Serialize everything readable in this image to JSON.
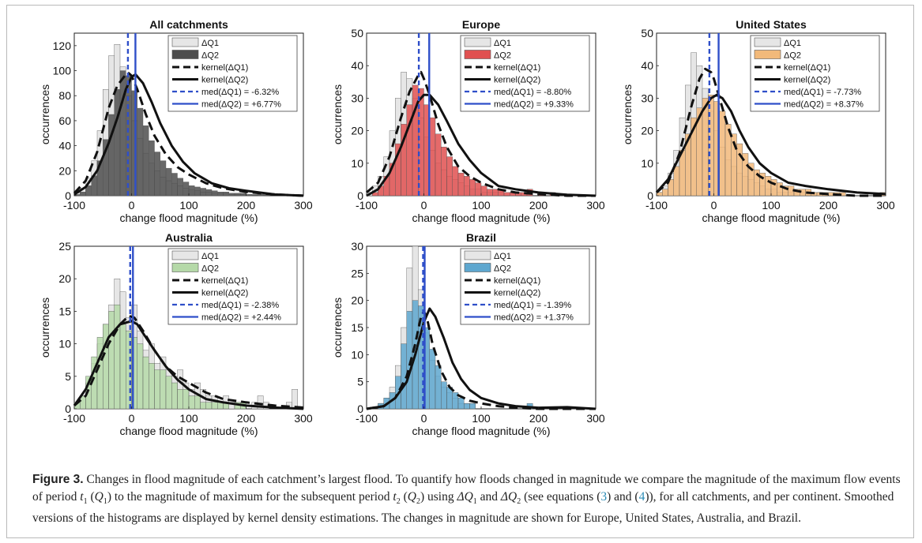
{
  "figure": {
    "label": "Figure 3.",
    "caption_parts": [
      "Changes in flood magnitude of each catchment’s largest flood. To quantify how floods changed in magnitude we compare the magnitude of the maximum flow events of period ",
      "t",
      "1",
      " (",
      "Q",
      "1",
      ") to the magnitude of maximum for the subsequent period ",
      "t",
      "2",
      " (",
      "Q",
      "2",
      ") using ",
      "ΔQ",
      "1",
      " and ",
      "ΔQ",
      "2",
      " (see equations (",
      "3",
      ") and (",
      "4",
      ")), for all catchments, and per continent. Smoothed versions of the histograms are displayed by kernel density estimations. The changes in magnitude are shown for Europe, United States, Australia, and Brazil."
    ]
  },
  "chart_data": [
    {
      "type": "histogram",
      "title": "All catchments",
      "xlabel": "change flood magnitude (%)",
      "ylabel": "occurrences",
      "xlim": [
        -100,
        300
      ],
      "ylim": [
        0,
        130
      ],
      "xticks": [
        -100,
        0,
        100,
        200,
        300
      ],
      "yticks": [
        0,
        20,
        40,
        60,
        80,
        100,
        120
      ],
      "bin_width": 10,
      "fill_colour": "#4d4d4d",
      "legend_location": "top-right",
      "legend": [
        "ΔQ1",
        "ΔQ2",
        "kernel(ΔQ1)",
        "kernel(ΔQ2)",
        "med(ΔQ1) = -6.32%",
        "med(ΔQ2) = +6.77%"
      ],
      "series": [
        {
          "name": "ΔQ1",
          "values": [
            2,
            6,
            14,
            28,
            52,
            85,
            112,
            121,
            103,
            80,
            60,
            46,
            34,
            26,
            20,
            15,
            12,
            10,
            8,
            6,
            5,
            4,
            3,
            3,
            2,
            2,
            2,
            1,
            1,
            1,
            1,
            0,
            1,
            0,
            0,
            0,
            0,
            0,
            0,
            0
          ]
        },
        {
          "name": "ΔQ2",
          "values": [
            1,
            3,
            8,
            16,
            28,
            45,
            65,
            85,
            100,
            96,
            84,
            70,
            56,
            44,
            35,
            28,
            22,
            18,
            14,
            11,
            8,
            7,
            6,
            5,
            4,
            3,
            3,
            2,
            2,
            2,
            1,
            1,
            1,
            1,
            0,
            0,
            1,
            0,
            0,
            1
          ]
        },
        {
          "name": "kernel(ΔQ1)",
          "x": [
            -100,
            -80,
            -60,
            -40,
            -25,
            -10,
            -5,
            0,
            10,
            25,
            40,
            60,
            80,
            100,
            130,
            160,
            200,
            250,
            300
          ],
          "y": [
            2,
            12,
            35,
            70,
            88,
            97,
            98,
            96,
            85,
            65,
            48,
            33,
            23,
            17,
            10,
            6,
            3,
            1,
            0
          ]
        },
        {
          "name": "kernel(ΔQ2)",
          "x": [
            -100,
            -80,
            -60,
            -40,
            -25,
            -10,
            0,
            7,
            20,
            35,
            50,
            70,
            90,
            110,
            140,
            170,
            200,
            250,
            300
          ],
          "y": [
            1,
            7,
            20,
            42,
            62,
            85,
            95,
            97,
            90,
            75,
            58,
            40,
            27,
            18,
            10,
            6,
            4,
            1,
            0
          ]
        },
        {
          "name": "med(ΔQ1) = -6.32%",
          "value": -6.32
        },
        {
          "name": "med(ΔQ2) = +6.77%",
          "value": 6.77
        }
      ]
    },
    {
      "type": "histogram",
      "title": "Europe",
      "xlabel": "change flood magnitude (%)",
      "ylabel": "occurrences",
      "xlim": [
        -100,
        300
      ],
      "ylim": [
        0,
        50
      ],
      "xticks": [
        -100,
        0,
        100,
        200,
        300
      ],
      "yticks": [
        0,
        10,
        20,
        30,
        40,
        50
      ],
      "bin_width": 10,
      "fill_colour": "#e05050",
      "legend_location": "top-right",
      "legend": [
        "ΔQ1",
        "ΔQ2",
        "kernel(ΔQ1)",
        "kernel(ΔQ2)",
        "med(ΔQ1) = -8.80%",
        "med(ΔQ2) = +9.33%"
      ],
      "series": [
        {
          "name": "ΔQ1",
          "values": [
            1,
            3,
            6,
            12,
            20,
            30,
            38,
            36,
            30,
            24,
            18,
            14,
            10,
            8,
            6,
            5,
            4,
            3,
            2,
            2,
            1,
            1,
            1,
            1,
            0,
            1,
            0,
            0,
            0,
            0,
            0,
            0,
            0,
            0,
            0,
            0,
            0,
            0,
            0,
            0
          ]
        },
        {
          "name": "ΔQ2",
          "values": [
            0,
            1,
            3,
            6,
            10,
            16,
            22,
            28,
            34,
            33,
            28,
            24,
            19,
            15,
            12,
            9,
            7,
            6,
            5,
            4,
            3,
            2,
            2,
            2,
            1,
            1,
            1,
            1,
            2,
            0,
            1,
            0,
            1,
            0,
            0,
            0,
            0,
            0,
            0,
            0
          ]
        },
        {
          "name": "kernel(ΔQ1)",
          "x": [
            -100,
            -80,
            -60,
            -40,
            -25,
            -10,
            -5,
            0,
            10,
            25,
            40,
            60,
            80,
            100,
            130,
            160,
            200,
            250,
            300
          ],
          "y": [
            1,
            4,
            12,
            24,
            32,
            37,
            38,
            36,
            31,
            22,
            15,
            9,
            6,
            4,
            2,
            1,
            0.5,
            0,
            0
          ]
        },
        {
          "name": "kernel(ΔQ2)",
          "x": [
            -100,
            -80,
            -60,
            -40,
            -25,
            -10,
            0,
            10,
            25,
            40,
            60,
            80,
            100,
            130,
            160,
            200,
            250,
            300
          ],
          "y": [
            0,
            2,
            7,
            15,
            22,
            29,
            31,
            31,
            28,
            23,
            16,
            11,
            7,
            3,
            2,
            1,
            0.3,
            0
          ]
        },
        {
          "name": "med(ΔQ1) = -8.80%",
          "value": -8.8
        },
        {
          "name": "med(ΔQ2) = +9.33%",
          "value": 9.33
        }
      ]
    },
    {
      "type": "histogram",
      "title": "United States",
      "xlabel": "change flood magnitude (%)",
      "ylabel": "occurrences",
      "xlim": [
        -100,
        300
      ],
      "ylim": [
        0,
        50
      ],
      "xticks": [
        -100,
        0,
        100,
        200,
        300
      ],
      "yticks": [
        0,
        10,
        20,
        30,
        40,
        50
      ],
      "bin_width": 10,
      "fill_colour": "#f2b97a",
      "legend_location": "top-right",
      "legend": [
        "ΔQ1",
        "ΔQ2",
        "kernel(ΔQ1)",
        "kernel(ΔQ2)",
        "med(ΔQ1) = -7.73%",
        "med(ΔQ2) = +8.37%"
      ],
      "series": [
        {
          "name": "ΔQ1",
          "values": [
            1,
            3,
            7,
            14,
            24,
            34,
            44,
            40,
            33,
            26,
            20,
            15,
            11,
            9,
            7,
            6,
            5,
            4,
            3,
            2,
            2,
            1,
            1,
            1,
            1,
            1,
            0,
            0,
            1,
            0,
            0,
            0,
            0,
            0,
            0,
            0,
            0,
            0,
            0,
            0
          ]
        },
        {
          "name": "ΔQ2",
          "values": [
            1,
            2,
            5,
            9,
            14,
            19,
            24,
            27,
            30,
            31,
            29,
            26,
            22,
            19,
            16,
            13,
            10,
            8,
            7,
            6,
            5,
            4,
            3,
            3,
            2,
            2,
            2,
            1,
            1,
            1,
            1,
            1,
            1,
            0,
            0,
            0,
            0,
            0,
            0,
            1
          ]
        },
        {
          "name": "kernel(ΔQ1)",
          "x": [
            -100,
            -80,
            -60,
            -40,
            -25,
            -15,
            -5,
            0,
            10,
            25,
            40,
            60,
            80,
            100,
            130,
            160,
            200,
            250,
            300
          ],
          "y": [
            1,
            4,
            13,
            27,
            36,
            39,
            38,
            36,
            30,
            21,
            14,
            9,
            6,
            4,
            2,
            1,
            0.5,
            0,
            0
          ]
        },
        {
          "name": "kernel(ΔQ2)",
          "x": [
            -100,
            -80,
            -60,
            -40,
            -20,
            -5,
            5,
            15,
            30,
            45,
            60,
            80,
            100,
            130,
            160,
            200,
            250,
            300
          ],
          "y": [
            1,
            5,
            12,
            19,
            26,
            30,
            31,
            30,
            26,
            20,
            15,
            10,
            7,
            4,
            3,
            2,
            1,
            0.5
          ]
        },
        {
          "name": "med(ΔQ1) = -7.73%",
          "value": -7.73
        },
        {
          "name": "med(ΔQ2) = +8.37%",
          "value": 8.37
        }
      ]
    },
    {
      "type": "histogram",
      "title": "Australia",
      "xlabel": "change flood magnitude (%)",
      "ylabel": "occurrences",
      "xlim": [
        -100,
        300
      ],
      "ylim": [
        0,
        25
      ],
      "xticks": [
        -100,
        0,
        100,
        200,
        300
      ],
      "yticks": [
        0,
        5,
        10,
        15,
        20,
        25
      ],
      "bin_width": 10,
      "fill_colour": "#b5d9a8",
      "legend_location": "top-right",
      "legend": [
        "ΔQ1",
        "ΔQ2",
        "kernel(ΔQ1)",
        "kernel(ΔQ2)",
        "med(ΔQ1) = -2.38%",
        "med(ΔQ2) = +2.44%"
      ],
      "series": [
        {
          "name": "ΔQ1",
          "values": [
            1,
            2,
            4,
            7,
            10,
            13,
            16,
            20,
            18,
            14,
            16,
            12,
            9,
            10,
            7,
            8,
            6,
            5,
            6,
            4,
            3,
            4,
            3,
            2,
            2,
            1,
            2,
            1,
            1,
            1,
            0,
            1,
            2,
            1,
            0,
            0,
            0,
            1,
            3,
            0
          ]
        },
        {
          "name": "ΔQ2",
          "values": [
            1,
            2,
            5,
            8,
            11,
            13,
            15,
            16,
            13,
            12,
            11,
            10,
            8,
            7,
            6,
            6,
            5,
            4,
            3,
            3,
            2,
            2,
            1,
            1,
            1,
            1,
            1,
            0,
            1,
            1,
            0,
            0,
            0,
            0,
            0,
            0,
            0,
            0,
            0,
            0
          ]
        },
        {
          "name": "kernel(ΔQ1)",
          "x": [
            -100,
            -80,
            -60,
            -40,
            -20,
            -5,
            5,
            20,
            40,
            60,
            80,
            100,
            130,
            160,
            200,
            250,
            300
          ],
          "y": [
            0.5,
            2,
            6,
            10,
            13,
            14.3,
            14,
            12,
            9,
            6.5,
            5,
            4,
            2.5,
            1.5,
            1,
            0.5,
            0.2
          ]
        },
        {
          "name": "kernel(ΔQ2)",
          "x": [
            -100,
            -80,
            -60,
            -40,
            -20,
            0,
            10,
            25,
            40,
            60,
            80,
            100,
            130,
            160,
            200,
            250,
            300
          ],
          "y": [
            0.5,
            3,
            7,
            11,
            13,
            13.5,
            13,
            11,
            9,
            6.5,
            4.5,
            3,
            1.5,
            1,
            0.5,
            0.2,
            0
          ]
        },
        {
          "name": "med(ΔQ1) = -2.38%",
          "value": -2.38
        },
        {
          "name": "med(ΔQ2) = +2.44%",
          "value": 2.44
        }
      ]
    },
    {
      "type": "histogram",
      "title": "Brazil",
      "xlabel": "change flood magnitude (%)",
      "ylabel": "occurrences",
      "xlim": [
        -100,
        300
      ],
      "ylim": [
        0,
        30
      ],
      "xticks": [
        -100,
        0,
        100,
        200,
        300
      ],
      "yticks": [
        0,
        5,
        10,
        15,
        20,
        25,
        30
      ],
      "bin_width": 10,
      "fill_colour": "#5ea7cf",
      "legend_location": "top-right",
      "legend": [
        "ΔQ1",
        "ΔQ2",
        "kernel(ΔQ1)",
        "kernel(ΔQ2)",
        "med(ΔQ1) = -1.39%",
        "med(ΔQ2) = +1.37%"
      ],
      "series": [
        {
          "name": "ΔQ1",
          "values": [
            0,
            0,
            1,
            2,
            4,
            8,
            15,
            26,
            30,
            22,
            14,
            9,
            6,
            4,
            3,
            2,
            1,
            1,
            1,
            0,
            0,
            0,
            0,
            0,
            0,
            0,
            0,
            0,
            0,
            0,
            0,
            0,
            0,
            0,
            0,
            0,
            0,
            0,
            0,
            0
          ]
        },
        {
          "name": "ΔQ2",
          "values": [
            0,
            0,
            1,
            2,
            3,
            6,
            12,
            18,
            20,
            19,
            15,
            11,
            8,
            5,
            4,
            3,
            2,
            1,
            1,
            0,
            0,
            0,
            0,
            0,
            0,
            0,
            0,
            0,
            1,
            0,
            0,
            0,
            0,
            0,
            0,
            0,
            0,
            0,
            0,
            0
          ]
        },
        {
          "name": "kernel(ΔQ1)",
          "x": [
            -100,
            -70,
            -50,
            -30,
            -15,
            -5,
            0,
            5,
            15,
            30,
            45,
            60,
            80,
            100,
            130,
            160,
            200,
            250,
            300
          ],
          "y": [
            0,
            0.5,
            2,
            6,
            12,
            17,
            18,
            17,
            12,
            7,
            4,
            2.5,
            1.5,
            1,
            0.5,
            0.2,
            0,
            0,
            0
          ]
        },
        {
          "name": "kernel(ΔQ2)",
          "x": [
            -100,
            -70,
            -50,
            -30,
            -15,
            0,
            10,
            20,
            35,
            50,
            65,
            80,
            100,
            130,
            160,
            200,
            250,
            300
          ],
          "y": [
            0,
            0.5,
            2,
            5,
            10,
            16,
            18.5,
            17,
            13,
            8.5,
            5.5,
            3.5,
            2,
            1,
            0.5,
            0.2,
            0.3,
            0
          ]
        },
        {
          "name": "med(ΔQ1) = -1.39%",
          "value": -1.39
        },
        {
          "name": "med(ΔQ2) = +1.37%",
          "value": 1.37
        }
      ]
    }
  ]
}
